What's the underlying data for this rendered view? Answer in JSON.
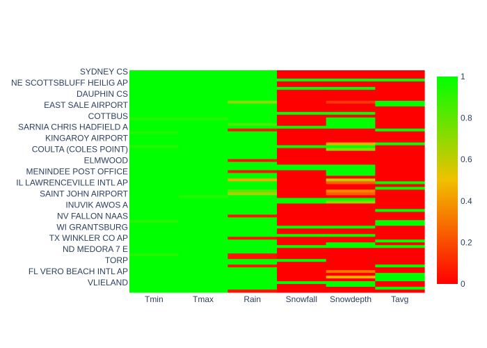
{
  "chart_data": {
    "type": "heatmap",
    "x": [
      "Tmin",
      "Tmax",
      "Rain",
      "Snowfall",
      "Snowdepth",
      "Tavg"
    ],
    "y_tick_labels": [
      "SYDNEY CS",
      "NE SCOTTSBLUFF HEILIG AP",
      "DAUPHIN CS",
      "EAST SALE AIRPORT",
      "COTTBUS",
      "SARNIA CHRIS HADFIELD A",
      "KINGAROY AIRPORT",
      "COULTA (COLES POINT)",
      "ELMWOOD",
      "MENINDEE POST OFFICE",
      "IL LAWRENCEVILLE INTL AP",
      "SAINT JOHN AIRPORT",
      "INUVIK AWOS A",
      "NV FALLON NAAS",
      "WI GRANTSBURG",
      "TX WINKLER CO AP",
      "ND MEDORA 7 E",
      "TORP",
      "FL VERO BEACH INTL AP",
      "VLIELAND"
    ],
    "row_count": 80,
    "zmin": 0,
    "zmax": 1,
    "colorscale": [
      [
        0,
        "#ff0000"
      ],
      [
        0.5,
        "#f0c000"
      ],
      [
        1,
        "#00ff00"
      ]
    ],
    "colorbar_ticks": [
      "0",
      "0.2",
      "0.4",
      "0.6",
      "0.8",
      "1"
    ],
    "z_overrides": [
      {
        "rows": [
          0,
          79
        ],
        "col": 0,
        "value": 1
      },
      {
        "rows": [
          0,
          79
        ],
        "col": 1,
        "value": 1
      },
      {
        "rows": [
          17,
          17
        ],
        "col": 0,
        "value": 0.92
      },
      {
        "rows": [
          17,
          17
        ],
        "col": 1,
        "value": 0.92
      },
      {
        "rows": [
          22,
          22
        ],
        "col": 0,
        "value": 0.93
      },
      {
        "rows": [
          27,
          27
        ],
        "col": 0,
        "value": 0.93
      },
      {
        "rows": [
          45,
          45
        ],
        "col": 1,
        "value": 0.93
      },
      {
        "rows": [
          54,
          54
        ],
        "col": 0,
        "value": 0.92
      },
      {
        "rows": [
          66,
          66
        ],
        "col": 0,
        "value": 0.92
      },
      {
        "rows": [
          0,
          79
        ],
        "col": 2,
        "value": 1
      },
      {
        "rows": [
          11,
          11
        ],
        "col": 2,
        "value": 0.7
      },
      {
        "rows": [
          19,
          19
        ],
        "col": 2,
        "value": 0.85
      },
      {
        "rows": [
          21,
          21
        ],
        "col": 2,
        "value": 0.05
      },
      {
        "rows": [
          32,
          32
        ],
        "col": 2,
        "value": 0.05
      },
      {
        "rows": [
          36,
          36
        ],
        "col": 2,
        "value": 0.05
      },
      {
        "rows": [
          39,
          39
        ],
        "col": 2,
        "value": 0.45
      },
      {
        "rows": [
          43,
          43
        ],
        "col": 2,
        "value": 0.8
      },
      {
        "rows": [
          44,
          44
        ],
        "col": 2,
        "value": 0.65
      },
      {
        "rows": [
          52,
          52
        ],
        "col": 2,
        "value": 0.05
      },
      {
        "rows": [
          60,
          60
        ],
        "col": 2,
        "value": 0.05
      },
      {
        "rows": [
          66,
          67
        ],
        "col": 2,
        "value": 0.05
      },
      {
        "rows": [
          70,
          70
        ],
        "col": 2,
        "value": 0.05
      },
      {
        "rows": [
          79,
          79
        ],
        "col": 2,
        "value": 0.05
      },
      {
        "rows": [
          0,
          79
        ],
        "col": 3,
        "value": 0
      },
      {
        "rows": [
          3,
          3
        ],
        "col": 3,
        "value": 1
      },
      {
        "rows": [
          6,
          6
        ],
        "col": 3,
        "value": 1
      },
      {
        "rows": [
          15,
          15
        ],
        "col": 3,
        "value": 1
      },
      {
        "rows": [
          20,
          20
        ],
        "col": 3,
        "value": 1
      },
      {
        "rows": [
          27,
          27
        ],
        "col": 3,
        "value": 1
      },
      {
        "rows": [
          34,
          35
        ],
        "col": 3,
        "value": 1
      },
      {
        "rows": [
          46,
          47
        ],
        "col": 3,
        "value": 1
      },
      {
        "rows": [
          56,
          56
        ],
        "col": 3,
        "value": 1
      },
      {
        "rows": [
          59,
          59
        ],
        "col": 3,
        "value": 1
      },
      {
        "rows": [
          63,
          63
        ],
        "col": 3,
        "value": 1
      },
      {
        "rows": [
          68,
          68
        ],
        "col": 3,
        "value": 1
      },
      {
        "rows": [
          76,
          76
        ],
        "col": 3,
        "value": 1
      },
      {
        "rows": [
          0,
          79
        ],
        "col": 4,
        "value": 0
      },
      {
        "rows": [
          3,
          3
        ],
        "col": 4,
        "value": 1
      },
      {
        "rows": [
          6,
          6
        ],
        "col": 4,
        "value": 1
      },
      {
        "rows": [
          11,
          11
        ],
        "col": 4,
        "value": 0.15
      },
      {
        "rows": [
          15,
          15
        ],
        "col": 4,
        "value": 1
      },
      {
        "rows": [
          17,
          19
        ],
        "col": 4,
        "value": 1
      },
      {
        "rows": [
          20,
          20
        ],
        "col": 4,
        "value": 1
      },
      {
        "rows": [
          26,
          26
        ],
        "col": 4,
        "value": 0.45
      },
      {
        "rows": [
          27,
          27
        ],
        "col": 4,
        "value": 1
      },
      {
        "rows": [
          28,
          28
        ],
        "col": 4,
        "value": 0.7
      },
      {
        "rows": [
          34,
          37
        ],
        "col": 4,
        "value": 1
      },
      {
        "rows": [
          39,
          39
        ],
        "col": 4,
        "value": 0.6
      },
      {
        "rows": [
          40,
          40
        ],
        "col": 4,
        "value": 0.25
      },
      {
        "rows": [
          43,
          43
        ],
        "col": 4,
        "value": 0.35
      },
      {
        "rows": [
          44,
          44
        ],
        "col": 4,
        "value": 0.25
      },
      {
        "rows": [
          46,
          46
        ],
        "col": 4,
        "value": 1
      },
      {
        "rows": [
          47,
          47
        ],
        "col": 4,
        "value": 0.7
      },
      {
        "rows": [
          56,
          56
        ],
        "col": 4,
        "value": 1
      },
      {
        "rows": [
          59,
          59
        ],
        "col": 4,
        "value": 1
      },
      {
        "rows": [
          62,
          62
        ],
        "col": 4,
        "value": 1
      },
      {
        "rows": [
          63,
          63
        ],
        "col": 4,
        "value": 1
      },
      {
        "rows": [
          72,
          72
        ],
        "col": 4,
        "value": 0.3
      },
      {
        "rows": [
          74,
          74
        ],
        "col": 4,
        "value": 0.45
      },
      {
        "rows": [
          76,
          77
        ],
        "col": 4,
        "value": 1
      },
      {
        "rows": [
          0,
          79
        ],
        "col": 5,
        "value": 0
      },
      {
        "rows": [
          3,
          3
        ],
        "col": 5,
        "value": 1
      },
      {
        "rows": [
          11,
          12
        ],
        "col": 5,
        "value": 1
      },
      {
        "rows": [
          21,
          21
        ],
        "col": 5,
        "value": 1
      },
      {
        "rows": [
          26,
          26
        ],
        "col": 5,
        "value": 1
      },
      {
        "rows": [
          40,
          40
        ],
        "col": 5,
        "value": 1
      },
      {
        "rows": [
          42,
          42
        ],
        "col": 5,
        "value": 1
      },
      {
        "rows": [
          50,
          50
        ],
        "col": 5,
        "value": 1
      },
      {
        "rows": [
          54,
          55
        ],
        "col": 5,
        "value": 1
      },
      {
        "rows": [
          61,
          61
        ],
        "col": 5,
        "value": 1
      },
      {
        "rows": [
          63,
          63
        ],
        "col": 5,
        "value": 1
      },
      {
        "rows": [
          70,
          70
        ],
        "col": 5,
        "value": 1
      },
      {
        "rows": [
          73,
          75
        ],
        "col": 5,
        "value": 1
      },
      {
        "rows": [
          78,
          78
        ],
        "col": 5,
        "value": 1
      }
    ]
  }
}
